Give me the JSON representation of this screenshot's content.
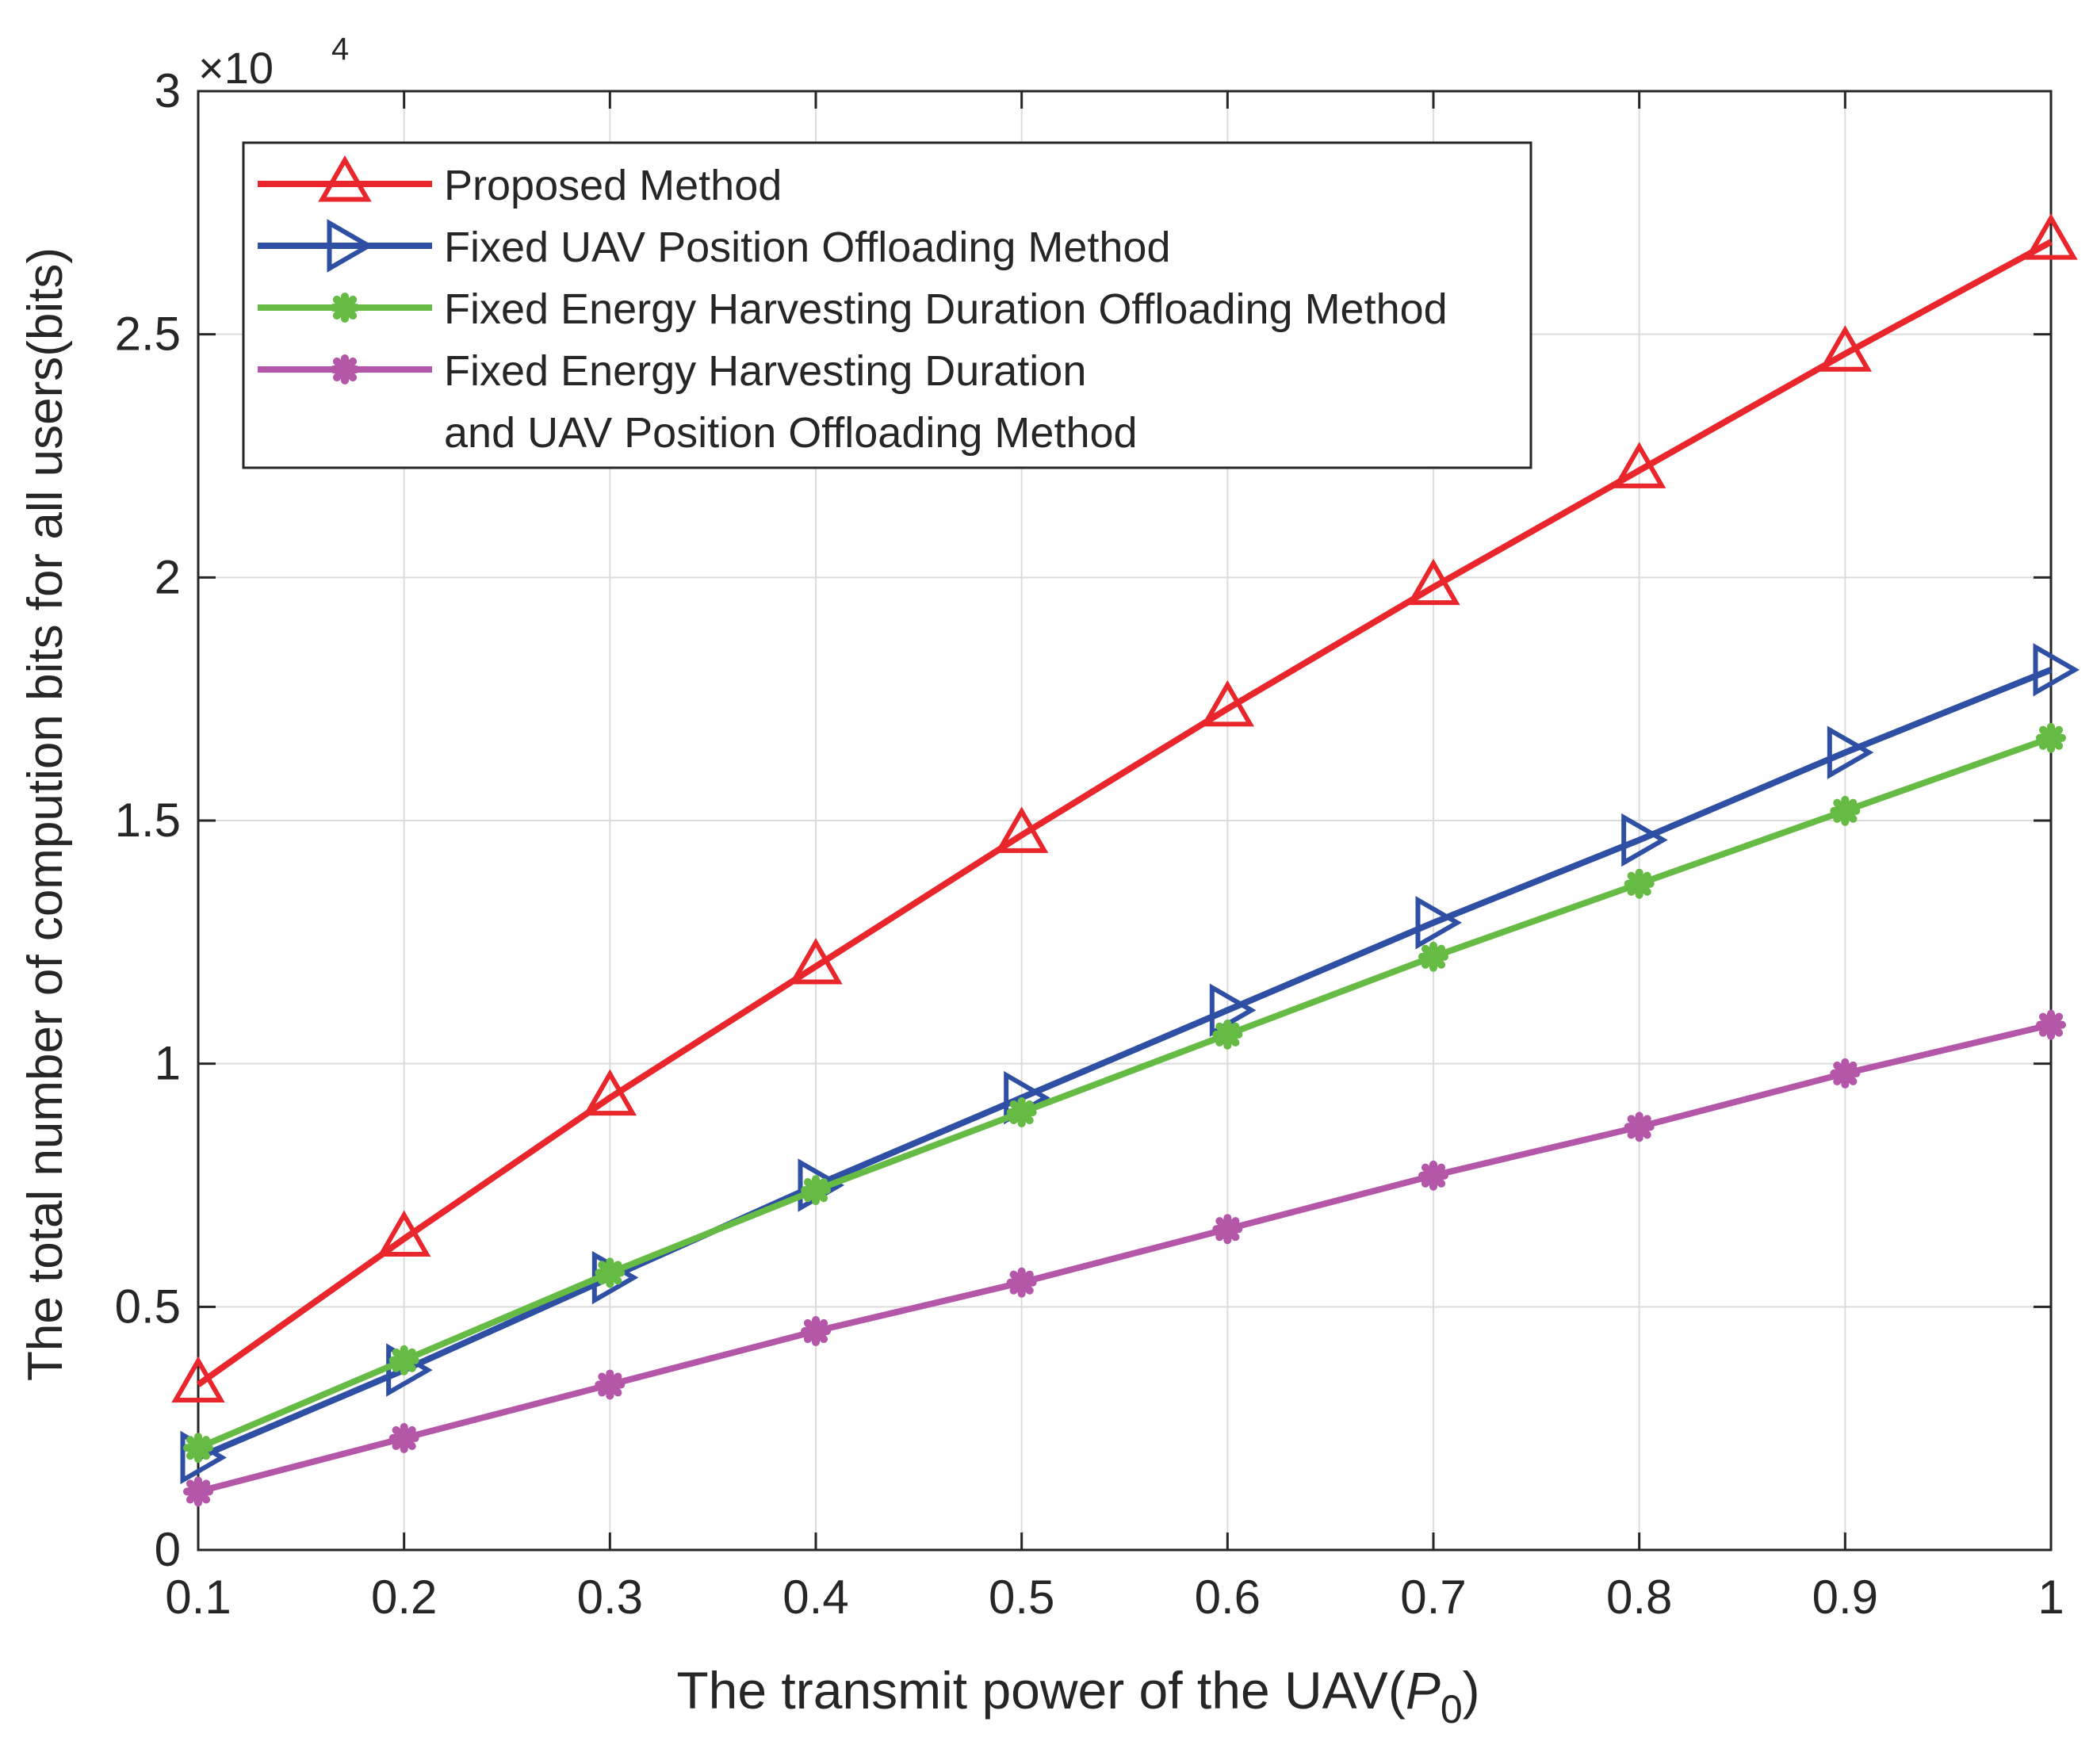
{
  "chart_data": {
    "type": "line",
    "title": "",
    "xlabel": "The transmit power of the UAV(",
    "xlabel_symbol": "P",
    "xlabel_subscript": "0",
    "xlabel_close": ")",
    "ylabel": "The total number of compution bits for all users(bits)",
    "y_exponent_base": "×10",
    "y_exponent_power": "4",
    "xlim": [
      0.1,
      1.0
    ],
    "ylim": [
      0,
      3
    ],
    "x": [
      0.1,
      0.2,
      0.3,
      0.4,
      0.5,
      0.6,
      0.7,
      0.8,
      0.9,
      1.0
    ],
    "xticks": [
      "0.1",
      "0.2",
      "0.3",
      "0.4",
      "0.5",
      "0.6",
      "0.7",
      "0.8",
      "0.9",
      "1"
    ],
    "yticks": [
      "0",
      "0.5",
      "1",
      "1.5",
      "2",
      "2.5",
      "3"
    ],
    "grid": true,
    "legend_position": "top-left",
    "series": [
      {
        "name": "Proposed Method",
        "name_lines": [
          "Proposed Method"
        ],
        "color": "#e8262b",
        "marker": "triangle-up",
        "values": [
          0.34,
          0.64,
          0.93,
          1.2,
          1.47,
          1.73,
          1.98,
          2.22,
          2.46,
          2.69
        ]
      },
      {
        "name": "Fixed UAV Position Offloading Method",
        "name_lines": [
          "Fixed UAV Position Offloading Method"
        ],
        "color": "#2e4fa3",
        "marker": "triangle-right",
        "values": [
          0.19,
          0.37,
          0.56,
          0.75,
          0.93,
          1.11,
          1.29,
          1.46,
          1.64,
          1.81
        ]
      },
      {
        "name": "Fixed Energy Harvesting Duration Offloading Method",
        "name_lines": [
          "Fixed Energy Harvesting Duration Offloading Method"
        ],
        "color": "#66bb44",
        "marker": "asterisk",
        "values": [
          0.21,
          0.39,
          0.57,
          0.74,
          0.9,
          1.06,
          1.22,
          1.37,
          1.52,
          1.67
        ]
      },
      {
        "name": "Fixed Energy Harvesting Duration and UAV Position Offloading Method",
        "name_lines": [
          "Fixed Energy Harvesting Duration",
          "and UAV Position Offloading Method"
        ],
        "color": "#b557a8",
        "marker": "asterisk",
        "values": [
          0.12,
          0.23,
          0.34,
          0.45,
          0.55,
          0.66,
          0.77,
          0.87,
          0.98,
          1.08
        ]
      }
    ]
  }
}
